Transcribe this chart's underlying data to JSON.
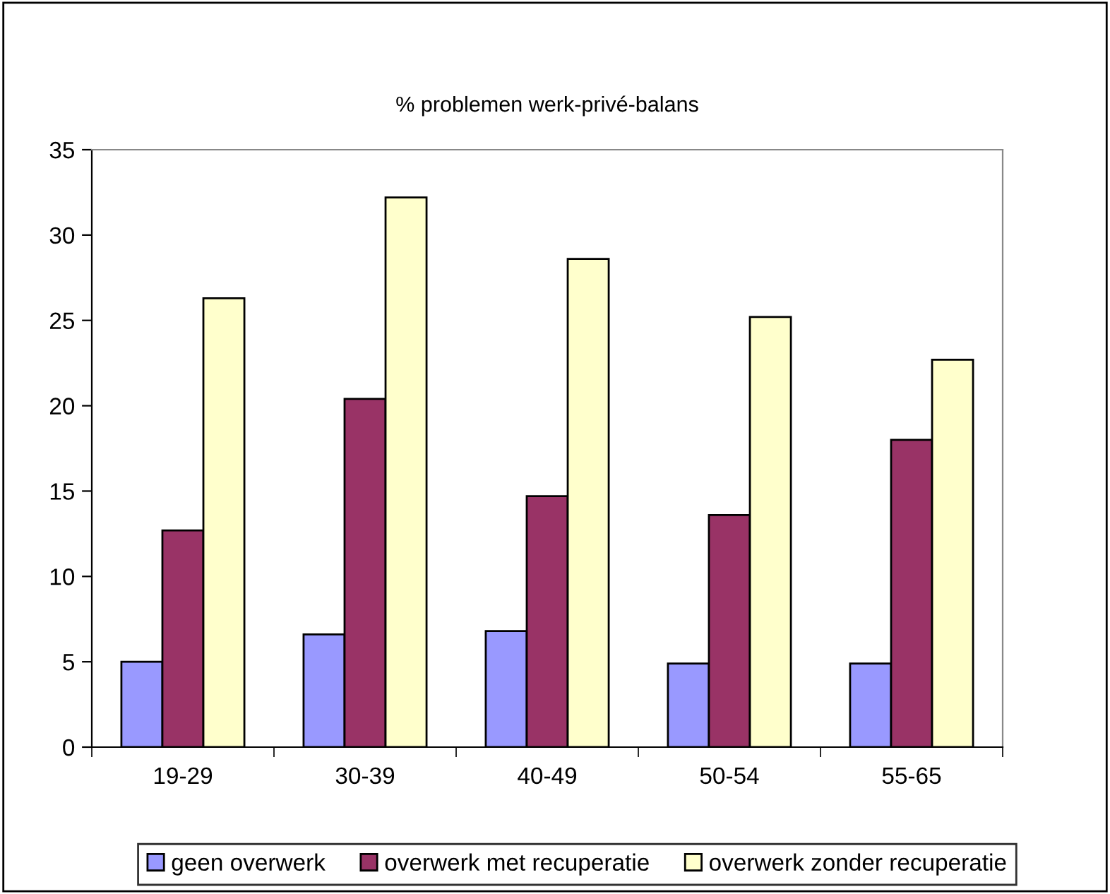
{
  "chart_data": {
    "type": "bar",
    "title": "% problemen werk-privé-balans",
    "categories": [
      "19-29",
      "30-39",
      "40-49",
      "50-54",
      "55-65"
    ],
    "series": [
      {
        "name": "geen overwerk",
        "color": "#9999ff",
        "values": [
          5.0,
          6.6,
          6.8,
          4.9,
          4.9
        ]
      },
      {
        "name": "overwerk met recuperatie",
        "color": "#993366",
        "values": [
          12.7,
          20.4,
          14.7,
          13.6,
          18.0
        ]
      },
      {
        "name": "overwerk zonder recuperatie",
        "color": "#ffffcc",
        "values": [
          26.3,
          32.2,
          28.6,
          25.2,
          22.7
        ]
      }
    ],
    "ylim": [
      0,
      35
    ],
    "yticks": [
      0,
      5,
      10,
      15,
      20,
      25,
      30,
      35
    ],
    "grid": false,
    "legend": "bottom"
  }
}
